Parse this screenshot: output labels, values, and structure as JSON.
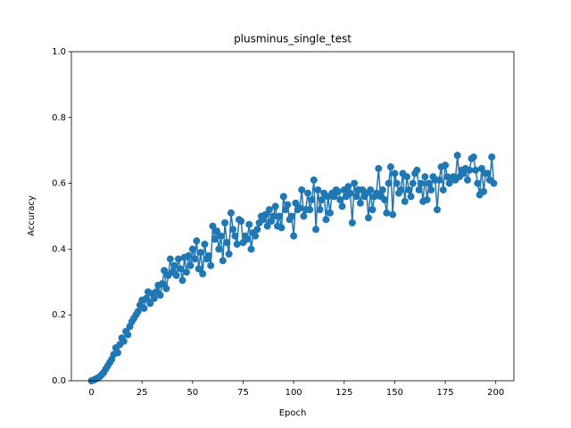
{
  "chart_data": {
    "type": "line",
    "title": "plusminus_single_test",
    "x_label": "Epoch",
    "y_label": "Accuracy",
    "x": [
      0,
      1,
      2,
      3,
      4,
      5,
      6,
      7,
      8,
      9,
      10,
      11,
      12,
      13,
      14,
      15,
      16,
      17,
      18,
      19,
      20,
      21,
      22,
      23,
      24,
      25,
      26,
      27,
      28,
      29,
      30,
      31,
      32,
      33,
      34,
      35,
      36,
      37,
      38,
      39,
      40,
      41,
      42,
      43,
      44,
      45,
      46,
      47,
      48,
      49,
      50,
      51,
      52,
      53,
      54,
      55,
      56,
      57,
      58,
      59,
      60,
      61,
      62,
      63,
      64,
      65,
      66,
      67,
      68,
      69,
      70,
      71,
      72,
      73,
      74,
      75,
      76,
      77,
      78,
      79,
      80,
      81,
      82,
      83,
      84,
      85,
      86,
      87,
      88,
      89,
      90,
      91,
      92,
      93,
      94,
      95,
      96,
      97,
      98,
      99,
      100,
      101,
      102,
      103,
      104,
      105,
      106,
      107,
      108,
      109,
      110,
      111,
      112,
      113,
      114,
      115,
      116,
      117,
      118,
      119,
      120,
      121,
      122,
      123,
      124,
      125,
      126,
      127,
      128,
      129,
      130,
      131,
      132,
      133,
      134,
      135,
      136,
      137,
      138,
      139,
      140,
      141,
      142,
      143,
      144,
      145,
      146,
      147,
      148,
      149,
      150,
      151,
      152,
      153,
      154,
      155,
      156,
      157,
      158,
      159,
      160,
      161,
      162,
      163,
      164,
      165,
      166,
      167,
      168,
      169,
      170,
      171,
      172,
      173,
      174,
      175,
      176,
      177,
      178,
      179,
      180,
      181,
      182,
      183,
      184,
      185,
      186,
      187,
      188,
      189,
      190,
      191,
      192,
      193,
      194,
      195,
      196,
      197,
      198,
      199
    ],
    "series": [
      {
        "color": "#1f77b4",
        "values": [
          0,
          0.002,
          0.005,
          0.008,
          0.012,
          0.018,
          0.025,
          0.035,
          0.045,
          0.055,
          0.065,
          0.08,
          0.1,
          0.085,
          0.11,
          0.13,
          0.12,
          0.15,
          0.14,
          0.165,
          0.18,
          0.19,
          0.2,
          0.21,
          0.23,
          0.245,
          0.22,
          0.25,
          0.27,
          0.235,
          0.265,
          0.25,
          0.27,
          0.29,
          0.26,
          0.295,
          0.335,
          0.28,
          0.32,
          0.37,
          0.33,
          0.35,
          0.32,
          0.37,
          0.34,
          0.305,
          0.375,
          0.33,
          0.38,
          0.35,
          0.4,
          0.37,
          0.425,
          0.34,
          0.39,
          0.325,
          0.415,
          0.37,
          0.38,
          0.35,
          0.47,
          0.43,
          0.455,
          0.4,
          0.44,
          0.365,
          0.48,
          0.42,
          0.385,
          0.51,
          0.46,
          0.44,
          0.415,
          0.49,
          0.485,
          0.42,
          0.44,
          0.43,
          0.475,
          0.4,
          0.45,
          0.44,
          0.46,
          0.48,
          0.5,
          0.49,
          0.505,
          0.47,
          0.52,
          0.485,
          0.5,
          0.53,
          0.47,
          0.5,
          0.465,
          0.56,
          0.52,
          0.535,
          0.49,
          0.5,
          0.44,
          0.54,
          0.52,
          0.525,
          0.58,
          0.5,
          0.52,
          0.57,
          0.52,
          0.55,
          0.61,
          0.46,
          0.58,
          0.52,
          0.55,
          0.57,
          0.49,
          0.56,
          0.51,
          0.57,
          0.56,
          0.58,
          0.575,
          0.55,
          0.53,
          0.58,
          0.56,
          0.59,
          0.57,
          0.48,
          0.6,
          0.56,
          0.58,
          0.54,
          0.58,
          0.56,
          0.57,
          0.495,
          0.58,
          0.52,
          0.56,
          0.57,
          0.645,
          0.56,
          0.58,
          0.55,
          0.51,
          0.6,
          0.65,
          0.505,
          0.63,
          0.6,
          0.57,
          0.58,
          0.63,
          0.545,
          0.62,
          0.58,
          0.56,
          0.6,
          0.63,
          0.64,
          0.58,
          0.6,
          0.545,
          0.62,
          0.55,
          0.6,
          0.58,
          0.62,
          0.61,
          0.52,
          0.61,
          0.65,
          0.58,
          0.655,
          0.62,
          0.6,
          0.61,
          0.62,
          0.61,
          0.685,
          0.62,
          0.64,
          0.63,
          0.645,
          0.61,
          0.64,
          0.675,
          0.68,
          0.64,
          0.6,
          0.565,
          0.645,
          0.575,
          0.63,
          0.63,
          0.61,
          0.68,
          0.6
        ]
      }
    ],
    "xlim": [
      -9.95,
      208.95
    ],
    "xticks": [
      0,
      25,
      50,
      75,
      100,
      125,
      150,
      175,
      200
    ],
    "ylim": [
      0,
      1
    ],
    "yticks": [
      {
        "value": 0,
        "label": "0.0"
      },
      0.2,
      0.4,
      0.6,
      0.8,
      {
        "value": 1,
        "label": "1.0"
      }
    ]
  }
}
